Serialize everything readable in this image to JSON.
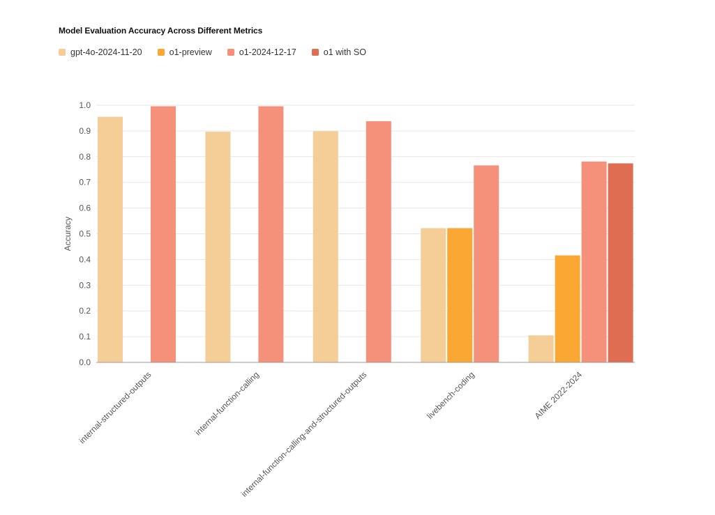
{
  "chart_data": {
    "type": "bar",
    "title": "Model Evaluation Accuracy Across Different Metrics",
    "xlabel": "",
    "ylabel": "Accuracy",
    "ylim": [
      0,
      1.0
    ],
    "yticks": [
      "0.0",
      "0.1",
      "0.2",
      "0.3",
      "0.4",
      "0.5",
      "0.6",
      "0.7",
      "0.8",
      "0.9",
      "1.0"
    ],
    "grid": true,
    "legend_position": "top-left",
    "categories": [
      "internal-structured-outputs",
      "internal-function-calling",
      "internal-function-calling-and-structured-outputs",
      "livebench-coding",
      "AIME 2022-2024"
    ],
    "series": [
      {
        "name": "gpt-4o-2024-11-20",
        "color": "#F5CD97",
        "values": [
          0.955,
          0.897,
          0.899,
          0.522,
          0.105
        ]
      },
      {
        "name": "o1-preview",
        "color": "#FBA733",
        "values": [
          null,
          null,
          null,
          0.522,
          0.416
        ]
      },
      {
        "name": "o1-2024-12-17",
        "color": "#F5917A",
        "values": [
          0.996,
          0.996,
          0.938,
          0.766,
          0.781
        ]
      },
      {
        "name": "o1 with SO",
        "color": "#DE6D52",
        "values": [
          null,
          null,
          null,
          null,
          0.774
        ]
      }
    ]
  }
}
